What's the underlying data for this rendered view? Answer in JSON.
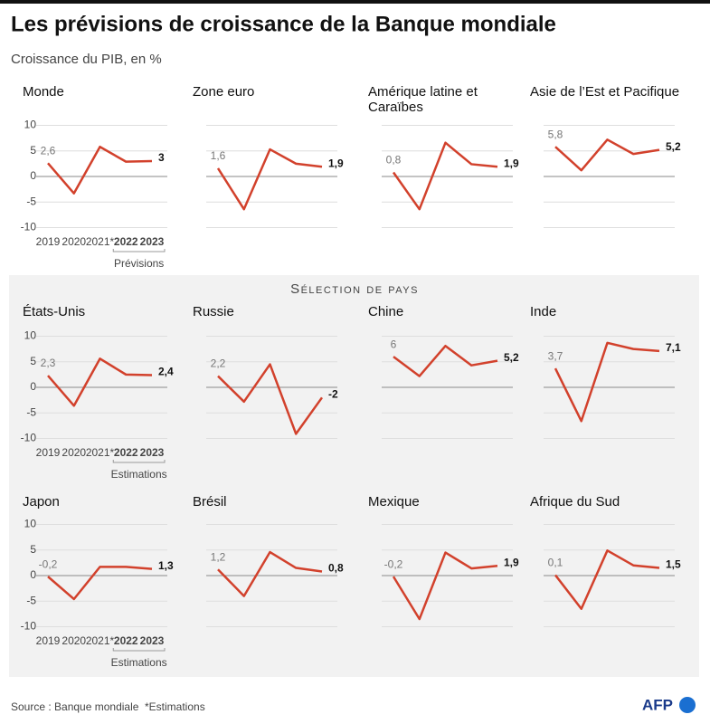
{
  "title": "Les prévisions de croissance de la Banque mondiale",
  "subtitle": "Croissance du PIB, en %",
  "section_label": "Sélection de pays",
  "source": "Source : Banque mondiale",
  "footnote": "*Estimations",
  "logo": "AFP",
  "chart_data": [
    {
      "type": "line",
      "title": "Monde",
      "categories": [
        "2019",
        "2020",
        "2021*",
        "2022",
        "2023"
      ],
      "values": [
        2.6,
        -3.3,
        5.8,
        2.9,
        3
      ],
      "value_labels": [
        "2,6",
        null,
        null,
        null,
        "3"
      ],
      "color": "#d2412c",
      "ylim": [
        -10,
        10
      ],
      "yticks": [
        10,
        5,
        0,
        -5,
        -10
      ],
      "axis_labels": true,
      "note": "Prévisions"
    },
    {
      "type": "line",
      "title": "Zone euro",
      "categories": [
        "2019",
        "2020",
        "2021*",
        "2022",
        "2023"
      ],
      "values": [
        1.6,
        -6.4,
        5.3,
        2.5,
        1.9
      ],
      "value_labels": [
        "1,6",
        null,
        null,
        null,
        "1,9"
      ],
      "color": "#d2412c",
      "ylim": [
        -10,
        10
      ],
      "yticks": [
        10,
        5,
        0,
        -5,
        -10
      ],
      "axis_labels": false
    },
    {
      "type": "line",
      "title": "Amérique latine et Caraïbes",
      "categories": [
        "2019",
        "2020",
        "2021*",
        "2022",
        "2023"
      ],
      "values": [
        0.8,
        -6.4,
        6.6,
        2.4,
        1.9
      ],
      "value_labels": [
        "0,8",
        null,
        null,
        null,
        "1,9"
      ],
      "color": "#d2412c",
      "ylim": [
        -10,
        10
      ],
      "yticks": [
        10,
        5,
        0,
        -5,
        -10
      ],
      "axis_labels": false
    },
    {
      "type": "line",
      "title": "Asie de l’Est et Pacifique",
      "categories": [
        "2019",
        "2020",
        "2021*",
        "2022",
        "2023"
      ],
      "values": [
        5.8,
        1.2,
        7.2,
        4.4,
        5.2
      ],
      "value_labels": [
        "5,8",
        null,
        null,
        null,
        "5,2"
      ],
      "color": "#d2412c",
      "ylim": [
        -10,
        10
      ],
      "yticks": [
        10,
        5,
        0,
        -5,
        -10
      ],
      "axis_labels": false
    },
    {
      "type": "line",
      "title": "États-Unis",
      "categories": [
        "2019",
        "2020",
        "2021*",
        "2022",
        "2023"
      ],
      "values": [
        2.3,
        -3.6,
        5.6,
        2.5,
        2.4
      ],
      "value_labels": [
        "2,3",
        null,
        null,
        null,
        "2,4"
      ],
      "color": "#d2412c",
      "ylim": [
        -10,
        10
      ],
      "yticks": [
        10,
        5,
        0,
        -5,
        -10
      ],
      "axis_labels": true,
      "note": "Estimations"
    },
    {
      "type": "line",
      "title": "Russie",
      "categories": [
        "2019",
        "2020",
        "2021*",
        "2022",
        "2023"
      ],
      "values": [
        2.2,
        -2.8,
        4.5,
        -9.1,
        -2
      ],
      "value_labels": [
        "2,2",
        null,
        null,
        null,
        "-2"
      ],
      "color": "#d2412c",
      "ylim": [
        -10,
        10
      ],
      "yticks": [
        10,
        5,
        0,
        -5,
        -10
      ],
      "axis_labels": false
    },
    {
      "type": "line",
      "title": "Chine",
      "categories": [
        "2019",
        "2020",
        "2021*",
        "2022",
        "2023"
      ],
      "values": [
        6,
        2.2,
        8.1,
        4.3,
        5.2
      ],
      "value_labels": [
        "6",
        null,
        null,
        null,
        "5,2"
      ],
      "color": "#d2412c",
      "ylim": [
        -10,
        10
      ],
      "yticks": [
        10,
        5,
        0,
        -5,
        -10
      ],
      "axis_labels": false
    },
    {
      "type": "line",
      "title": "Inde",
      "categories": [
        "2019",
        "2020",
        "2021*",
        "2022",
        "2023"
      ],
      "values": [
        3.7,
        -6.6,
        8.7,
        7.5,
        7.1
      ],
      "value_labels": [
        "3,7",
        null,
        null,
        null,
        "7,1"
      ],
      "color": "#d2412c",
      "ylim": [
        -10,
        10
      ],
      "yticks": [
        10,
        5,
        0,
        -5,
        -10
      ],
      "axis_labels": false
    },
    {
      "type": "line",
      "title": "Japon",
      "categories": [
        "2019",
        "2020",
        "2021*",
        "2022",
        "2023"
      ],
      "values": [
        -0.2,
        -4.6,
        1.7,
        1.7,
        1.3
      ],
      "value_labels": [
        "-0,2",
        null,
        null,
        null,
        "1,3"
      ],
      "color": "#d2412c",
      "ylim": [
        -10,
        10
      ],
      "yticks": [
        10,
        5,
        0,
        -5,
        -10
      ],
      "axis_labels": true,
      "note": "Estimations"
    },
    {
      "type": "line",
      "title": "Brésil",
      "categories": [
        "2019",
        "2020",
        "2021*",
        "2022",
        "2023"
      ],
      "values": [
        1.2,
        -4,
        4.6,
        1.5,
        0.8
      ],
      "value_labels": [
        "1,2",
        null,
        null,
        null,
        "0,8"
      ],
      "color": "#d2412c",
      "ylim": [
        -10,
        10
      ],
      "yticks": [
        10,
        5,
        0,
        -5,
        -10
      ],
      "axis_labels": false
    },
    {
      "type": "line",
      "title": "Mexique",
      "categories": [
        "2019",
        "2020",
        "2021*",
        "2022",
        "2023"
      ],
      "values": [
        -0.2,
        -8.5,
        4.5,
        1.4,
        1.9
      ],
      "value_labels": [
        "-0,2",
        null,
        null,
        null,
        "1,9"
      ],
      "color": "#d2412c",
      "ylim": [
        -10,
        10
      ],
      "yticks": [
        10,
        5,
        0,
        -5,
        -10
      ],
      "axis_labels": false
    },
    {
      "type": "line",
      "title": "Afrique du Sud",
      "categories": [
        "2019",
        "2020",
        "2021*",
        "2022",
        "2023"
      ],
      "values": [
        0.1,
        -6.5,
        4.9,
        2,
        1.5
      ],
      "value_labels": [
        "0,1",
        null,
        null,
        null,
        "1,5"
      ],
      "color": "#d2412c",
      "ylim": [
        -10,
        10
      ],
      "yticks": [
        10,
        5,
        0,
        -5,
        -10
      ],
      "axis_labels": false
    }
  ]
}
